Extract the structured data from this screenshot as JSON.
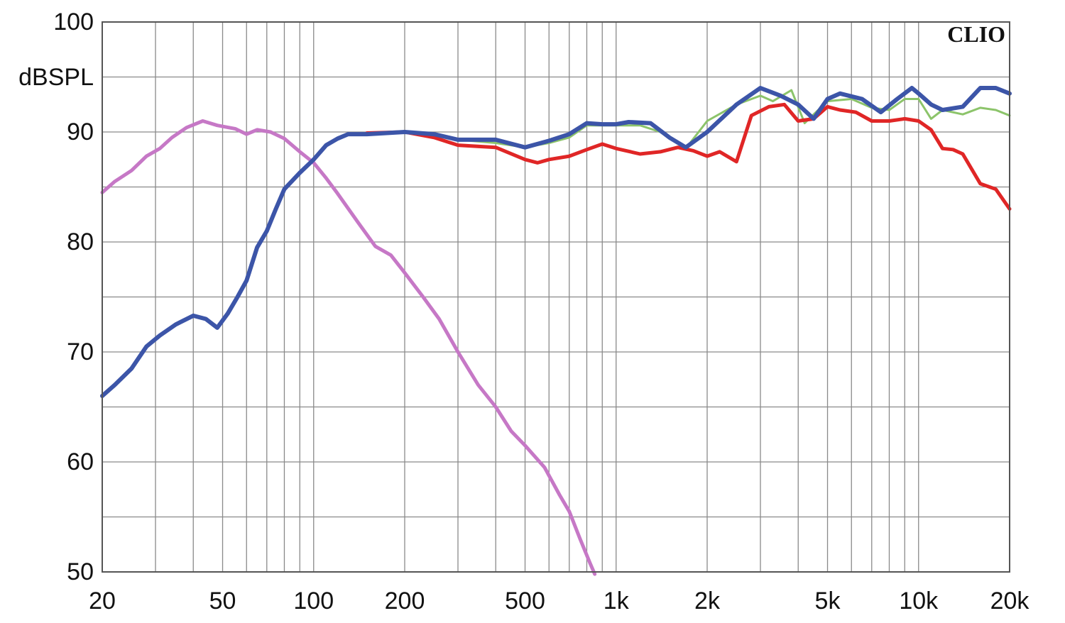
{
  "chart_data": {
    "type": "line",
    "brand": "CLIO",
    "ylabel": "dBSPL",
    "xscale": "log",
    "xlim": [
      20,
      20000
    ],
    "ylim": [
      50,
      100
    ],
    "grid": true,
    "x_tick_labels": [
      {
        "value": 20,
        "label": "20"
      },
      {
        "value": 50,
        "label": "50"
      },
      {
        "value": 100,
        "label": "100"
      },
      {
        "value": 200,
        "label": "200"
      },
      {
        "value": 500,
        "label": "500"
      },
      {
        "value": 1000,
        "label": "1k"
      },
      {
        "value": 2000,
        "label": "2k"
      },
      {
        "value": 5000,
        "label": "5k"
      },
      {
        "value": 10000,
        "label": "10k"
      },
      {
        "value": 20000,
        "label": "20k"
      }
    ],
    "y_tick_labels": [
      {
        "value": 100,
        "label": "100"
      },
      {
        "value": 90,
        "label": "90"
      },
      {
        "value": 80,
        "label": "80"
      },
      {
        "value": 70,
        "label": "70"
      },
      {
        "value": 60,
        "label": "60"
      },
      {
        "value": 50,
        "label": "50"
      }
    ],
    "series": [
      {
        "color": "#c678c6",
        "width": 5,
        "points": [
          [
            20,
            84.5
          ],
          [
            22,
            85.5
          ],
          [
            25,
            86.5
          ],
          [
            28,
            87.8
          ],
          [
            31,
            88.5
          ],
          [
            34,
            89.5
          ],
          [
            38,
            90.4
          ],
          [
            43,
            91
          ],
          [
            48,
            90.6
          ],
          [
            55,
            90.3
          ],
          [
            60,
            89.8
          ],
          [
            65,
            90.2
          ],
          [
            72,
            90
          ],
          [
            80,
            89.4
          ],
          [
            90,
            88.2
          ],
          [
            100,
            87.2
          ],
          [
            110,
            85.8
          ],
          [
            120,
            84.4
          ],
          [
            140,
            81.8
          ],
          [
            160,
            79.6
          ],
          [
            180,
            78.8
          ],
          [
            200,
            77.2
          ],
          [
            230,
            75
          ],
          [
            260,
            73
          ],
          [
            300,
            70
          ],
          [
            350,
            67
          ],
          [
            400,
            65
          ],
          [
            450,
            62.8
          ],
          [
            500,
            61.5
          ],
          [
            580,
            59.5
          ],
          [
            650,
            57
          ],
          [
            700,
            55.5
          ],
          [
            760,
            53
          ],
          [
            820,
            50.8
          ],
          [
            850,
            49.8
          ]
        ]
      },
      {
        "color": "#8cc46a",
        "width": 3,
        "points": [
          [
            150,
            89.9
          ],
          [
            200,
            90
          ],
          [
            250,
            89.8
          ],
          [
            300,
            89.3
          ],
          [
            400,
            89
          ],
          [
            500,
            88.6
          ],
          [
            600,
            89
          ],
          [
            700,
            89.5
          ],
          [
            800,
            90.6
          ],
          [
            1000,
            90.6
          ],
          [
            1200,
            90.6
          ],
          [
            1400,
            90
          ],
          [
            1700,
            88.5
          ],
          [
            2000,
            91
          ],
          [
            2500,
            92.5
          ],
          [
            3000,
            93.3
          ],
          [
            3300,
            92.8
          ],
          [
            3800,
            93.8
          ],
          [
            4200,
            90.8
          ],
          [
            4500,
            91.6
          ],
          [
            5000,
            92.8
          ],
          [
            6000,
            93
          ],
          [
            7000,
            92.2
          ],
          [
            8000,
            92
          ],
          [
            9000,
            93
          ],
          [
            10000,
            93
          ],
          [
            11000,
            91.2
          ],
          [
            12000,
            92
          ],
          [
            14000,
            91.6
          ],
          [
            16000,
            92.2
          ],
          [
            18000,
            92
          ],
          [
            20000,
            91.5
          ]
        ]
      },
      {
        "color": "#e02626",
        "width": 5,
        "points": [
          [
            150,
            89.9
          ],
          [
            200,
            90
          ],
          [
            250,
            89.5
          ],
          [
            300,
            88.8
          ],
          [
            400,
            88.6
          ],
          [
            500,
            87.5
          ],
          [
            550,
            87.2
          ],
          [
            600,
            87.5
          ],
          [
            700,
            87.8
          ],
          [
            800,
            88.4
          ],
          [
            900,
            88.9
          ],
          [
            1000,
            88.5
          ],
          [
            1200,
            88
          ],
          [
            1400,
            88.2
          ],
          [
            1600,
            88.6
          ],
          [
            1800,
            88.3
          ],
          [
            2000,
            87.8
          ],
          [
            2200,
            88.2
          ],
          [
            2500,
            87.3
          ],
          [
            2800,
            91.5
          ],
          [
            3200,
            92.3
          ],
          [
            3600,
            92.5
          ],
          [
            4000,
            91
          ],
          [
            4500,
            91.2
          ],
          [
            5000,
            92.3
          ],
          [
            5500,
            92
          ],
          [
            6200,
            91.8
          ],
          [
            7000,
            91
          ],
          [
            8000,
            91
          ],
          [
            9000,
            91.2
          ],
          [
            10000,
            91
          ],
          [
            11000,
            90.2
          ],
          [
            12000,
            88.5
          ],
          [
            13000,
            88.4
          ],
          [
            14000,
            88
          ],
          [
            16000,
            85.3
          ],
          [
            18000,
            84.8
          ],
          [
            20000,
            83
          ]
        ]
      },
      {
        "color": "#3c55a8",
        "width": 6,
        "points": [
          [
            20,
            66
          ],
          [
            22,
            67
          ],
          [
            25,
            68.5
          ],
          [
            28,
            70.5
          ],
          [
            31,
            71.5
          ],
          [
            35,
            72.5
          ],
          [
            40,
            73.3
          ],
          [
            44,
            73
          ],
          [
            48,
            72.2
          ],
          [
            52,
            73.5
          ],
          [
            56,
            75
          ],
          [
            60,
            76.5
          ],
          [
            65,
            79.5
          ],
          [
            70,
            81
          ],
          [
            75,
            83
          ],
          [
            80,
            84.8
          ],
          [
            90,
            86.3
          ],
          [
            100,
            87.5
          ],
          [
            110,
            88.8
          ],
          [
            120,
            89.4
          ],
          [
            130,
            89.8
          ],
          [
            150,
            89.8
          ],
          [
            200,
            90
          ],
          [
            250,
            89.8
          ],
          [
            300,
            89.3
          ],
          [
            400,
            89.3
          ],
          [
            500,
            88.6
          ],
          [
            600,
            89.2
          ],
          [
            700,
            89.8
          ],
          [
            800,
            90.8
          ],
          [
            900,
            90.7
          ],
          [
            1000,
            90.7
          ],
          [
            1100,
            90.9
          ],
          [
            1300,
            90.8
          ],
          [
            1500,
            89.5
          ],
          [
            1700,
            88.6
          ],
          [
            2000,
            90
          ],
          [
            2500,
            92.5
          ],
          [
            3000,
            94
          ],
          [
            3500,
            93.3
          ],
          [
            4000,
            92.5
          ],
          [
            4500,
            91.2
          ],
          [
            5000,
            93
          ],
          [
            5500,
            93.5
          ],
          [
            6500,
            93
          ],
          [
            7500,
            91.8
          ],
          [
            8500,
            93
          ],
          [
            9500,
            94
          ],
          [
            10000,
            93.5
          ],
          [
            11000,
            92.5
          ],
          [
            12000,
            92
          ],
          [
            14000,
            92.3
          ],
          [
            16000,
            94
          ],
          [
            18000,
            94
          ],
          [
            20000,
            93.5
          ]
        ]
      }
    ]
  }
}
